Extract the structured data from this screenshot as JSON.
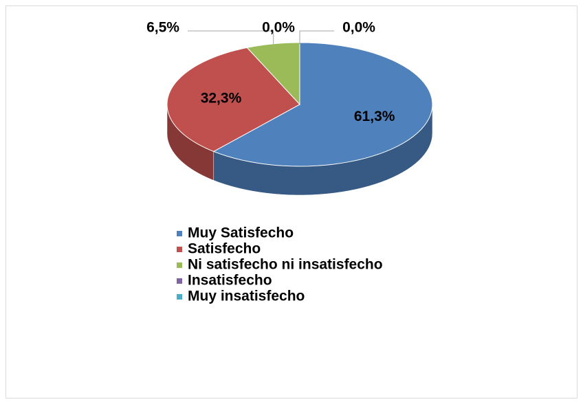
{
  "chart_data": {
    "type": "pie",
    "categories": [
      "Muy Satisfecho",
      "Satisfecho",
      "Ni satisfecho ni insatisfecho",
      "Insatisfecho",
      "Muy insatisfecho"
    ],
    "values": [
      61.3,
      32.3,
      6.5,
      0,
      0
    ],
    "value_labels": [
      "61,3%",
      "32,3%",
      "6,5%",
      "0,0%",
      "0,0%"
    ],
    "colors": [
      "#4f81bd",
      "#c0504d",
      "#9bbb59",
      "#8064a2",
      "#4bacc6"
    ],
    "legend": "bottom"
  }
}
